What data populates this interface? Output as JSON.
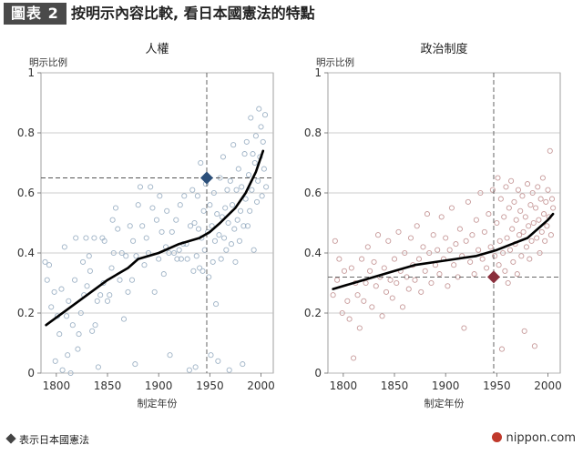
{
  "header": {
    "figure_label": "圖表 2",
    "title": "按明示內容比較, 看日本國憲法的特點"
  },
  "legend": {
    "label": "表示日本國憲法"
  },
  "source": {
    "text": "nippon.com"
  },
  "colors": {
    "left_points": "#9fb3c6",
    "right_points": "#c79a9a",
    "trend": "#000000",
    "left_marker": "#2b4f7a",
    "right_marker": "#8a2f3c",
    "grid": "#bbbbbb",
    "guide": "#555555"
  },
  "chart_data": [
    {
      "type": "scatter",
      "title": "人權",
      "ylabel": "明示比例",
      "xlabel": "制定年份",
      "xlim": [
        1785,
        2012
      ],
      "ylim": [
        0,
        1
      ],
      "xticks": [
        1800,
        1850,
        1900,
        1950,
        2000
      ],
      "yticks": [
        0,
        0.2,
        0.4,
        0.6,
        0.8,
        1
      ],
      "ytick_labels": [
        "0",
        "0.2",
        "0.4",
        "0.6",
        "0.8",
        "1"
      ],
      "grid": "horizontal",
      "japan": {
        "x": 1947,
        "y": 0.65
      },
      "trend": [
        [
          1790,
          0.16
        ],
        [
          1810,
          0.21
        ],
        [
          1830,
          0.26
        ],
        [
          1850,
          0.31
        ],
        [
          1870,
          0.35
        ],
        [
          1880,
          0.38
        ],
        [
          1900,
          0.4
        ],
        [
          1920,
          0.43
        ],
        [
          1940,
          0.45
        ],
        [
          1950,
          0.47
        ],
        [
          1960,
          0.5
        ],
        [
          1975,
          0.55
        ],
        [
          1985,
          0.6
        ],
        [
          1995,
          0.67
        ],
        [
          2002,
          0.74
        ]
      ],
      "points": [
        [
          1789,
          0.37
        ],
        [
          1791,
          0.31
        ],
        [
          1793,
          0.36
        ],
        [
          1795,
          0.22
        ],
        [
          1798,
          0.27
        ],
        [
          1799,
          0.04
        ],
        [
          1801,
          0.19
        ],
        [
          1803,
          0.13
        ],
        [
          1805,
          0.28
        ],
        [
          1806,
          0.01
        ],
        [
          1808,
          0.42
        ],
        [
          1810,
          0.19
        ],
        [
          1811,
          0.06
        ],
        [
          1812,
          0.24
        ],
        [
          1814,
          0.0
        ],
        [
          1816,
          0.16
        ],
        [
          1818,
          0.31
        ],
        [
          1819,
          0.45
        ],
        [
          1821,
          0.08
        ],
        [
          1822,
          0.13
        ],
        [
          1824,
          0.2
        ],
        [
          1826,
          0.37
        ],
        [
          1827,
          0.26
        ],
        [
          1829,
          0.45
        ],
        [
          1830,
          0.29
        ],
        [
          1832,
          0.39
        ],
        [
          1833,
          0.34
        ],
        [
          1835,
          0.14
        ],
        [
          1837,
          0.45
        ],
        [
          1838,
          0.16
        ],
        [
          1840,
          0.24
        ],
        [
          1841,
          0.02
        ],
        [
          1843,
          0.26
        ],
        [
          1845,
          0.45
        ],
        [
          1846,
          0.3
        ],
        [
          1847,
          0.44
        ],
        [
          1850,
          0.24
        ],
        [
          1852,
          0.26
        ],
        [
          1854,
          0.35
        ],
        [
          1855,
          0.51
        ],
        [
          1856,
          0.4
        ],
        [
          1858,
          0.55
        ],
        [
          1860,
          0.48
        ],
        [
          1862,
          0.31
        ],
        [
          1864,
          0.4
        ],
        [
          1866,
          0.18
        ],
        [
          1868,
          0.39
        ],
        [
          1870,
          0.27
        ],
        [
          1872,
          0.49
        ],
        [
          1874,
          0.31
        ],
        [
          1875,
          0.44
        ],
        [
          1877,
          0.03
        ],
        [
          1878,
          0.39
        ],
        [
          1880,
          0.56
        ],
        [
          1882,
          0.62
        ],
        [
          1884,
          0.49
        ],
        [
          1886,
          0.36
        ],
        [
          1888,
          0.45
        ],
        [
          1890,
          0.4
        ],
        [
          1892,
          0.62
        ],
        [
          1894,
          0.55
        ],
        [
          1896,
          0.27
        ],
        [
          1898,
          0.51
        ],
        [
          1900,
          0.38
        ],
        [
          1901,
          0.59
        ],
        [
          1903,
          0.47
        ],
        [
          1905,
          0.33
        ],
        [
          1907,
          0.42
        ],
        [
          1908,
          0.54
        ],
        [
          1910,
          0.4
        ],
        [
          1911,
          0.06
        ],
        [
          1913,
          0.47
        ],
        [
          1915,
          0.4
        ],
        [
          1917,
          0.51
        ],
        [
          1918,
          0.38
        ],
        [
          1920,
          0.41
        ],
        [
          1921,
          0.56
        ],
        [
          1922,
          0.38
        ],
        [
          1924,
          0.43
        ],
        [
          1925,
          0.59
        ],
        [
          1927,
          0.43
        ],
        [
          1928,
          0.38
        ],
        [
          1930,
          0.01
        ],
        [
          1931,
          0.49
        ],
        [
          1933,
          0.61
        ],
        [
          1934,
          0.34
        ],
        [
          1935,
          0.5
        ],
        [
          1936,
          0.02
        ],
        [
          1937,
          0.39
        ],
        [
          1938,
          0.59
        ],
        [
          1939,
          0.48
        ],
        [
          1940,
          0.35
        ],
        [
          1941,
          0.7
        ],
        [
          1942,
          0.45
        ],
        [
          1943,
          0.34
        ],
        [
          1944,
          0.54
        ],
        [
          1945,
          0.41
        ],
        [
          1946,
          0.63
        ],
        [
          1948,
          0.47
        ],
        [
          1949,
          0.32
        ],
        [
          1950,
          0.56
        ],
        [
          1951,
          0.06
        ],
        [
          1952,
          0.49
        ],
        [
          1953,
          0.37
        ],
        [
          1954,
          0.6
        ],
        [
          1955,
          0.44
        ],
        [
          1956,
          0.23
        ],
        [
          1957,
          0.53
        ],
        [
          1958,
          0.04
        ],
        [
          1959,
          0.46
        ],
        [
          1960,
          0.65
        ],
        [
          1961,
          0.38
        ],
        [
          1962,
          0.52
        ],
        [
          1963,
          0.72
        ],
        [
          1964,
          0.45
        ],
        [
          1965,
          0.55
        ],
        [
          1966,
          0.41
        ],
        [
          1967,
          0.61
        ],
        [
          1968,
          0.5
        ],
        [
          1969,
          0.01
        ],
        [
          1970,
          0.64
        ],
        [
          1971,
          0.43
        ],
        [
          1972,
          0.56
        ],
        [
          1973,
          0.76
        ],
        [
          1974,
          0.48
        ],
        [
          1975,
          0.37
        ],
        [
          1976,
          0.61
        ],
        [
          1977,
          0.51
        ],
        [
          1978,
          0.68
        ],
        [
          1979,
          0.44
        ],
        [
          1980,
          0.54
        ],
        [
          1981,
          0.62
        ],
        [
          1982,
          0.03
        ],
        [
          1983,
          0.49
        ],
        [
          1984,
          0.73
        ],
        [
          1985,
          0.58
        ],
        [
          1986,
          0.77
        ],
        [
          1987,
          0.49
        ],
        [
          1988,
          0.66
        ],
        [
          1989,
          0.54
        ],
        [
          1990,
          0.85
        ],
        [
          1991,
          0.61
        ],
        [
          1992,
          0.73
        ],
        [
          1993,
          0.41
        ],
        [
          1994,
          0.7
        ],
        [
          1995,
          0.79
        ],
        [
          1996,
          0.57
        ],
        [
          1997,
          0.64
        ],
        [
          1998,
          0.88
        ],
        [
          1999,
          0.72
        ],
        [
          2000,
          0.82
        ],
        [
          2001,
          0.59
        ],
        [
          2002,
          0.77
        ],
        [
          2003,
          0.68
        ],
        [
          2004,
          0.86
        ],
        [
          2005,
          0.62
        ]
      ]
    },
    {
      "type": "scatter",
      "title": "政治制度",
      "ylabel": "明示比例",
      "xlabel": "制定年份",
      "xlim": [
        1785,
        2012
      ],
      "ylim": [
        0,
        1
      ],
      "xticks": [
        1800,
        1850,
        1900,
        1950,
        2000
      ],
      "yticks": [
        0,
        0.2,
        0.4,
        0.6,
        0.8,
        1
      ],
      "ytick_labels": [
        "0",
        "0.2",
        "0.4",
        "0.6",
        "0.8",
        "1"
      ],
      "grid": "horizontal",
      "japan": {
        "x": 1947,
        "y": 0.32
      },
      "trend": [
        [
          1790,
          0.28
        ],
        [
          1810,
          0.3
        ],
        [
          1830,
          0.32
        ],
        [
          1850,
          0.34
        ],
        [
          1870,
          0.36
        ],
        [
          1890,
          0.37
        ],
        [
          1910,
          0.38
        ],
        [
          1930,
          0.39
        ],
        [
          1950,
          0.41
        ],
        [
          1965,
          0.43
        ],
        [
          1980,
          0.45
        ],
        [
          1990,
          0.48
        ],
        [
          2000,
          0.51
        ],
        [
          2005,
          0.53
        ]
      ],
      "points": [
        [
          1790,
          0.26
        ],
        [
          1792,
          0.44
        ],
        [
          1794,
          0.31
        ],
        [
          1796,
          0.38
        ],
        [
          1799,
          0.2
        ],
        [
          1801,
          0.34
        ],
        [
          1804,
          0.24
        ],
        [
          1806,
          0.18
        ],
        [
          1808,
          0.35
        ],
        [
          1810,
          0.05
        ],
        [
          1812,
          0.3
        ],
        [
          1814,
          0.26
        ],
        [
          1816,
          0.15
        ],
        [
          1818,
          0.38
        ],
        [
          1820,
          0.24
        ],
        [
          1822,
          0.3
        ],
        [
          1824,
          0.42
        ],
        [
          1826,
          0.34
        ],
        [
          1828,
          0.22
        ],
        [
          1830,
          0.37
        ],
        [
          1832,
          0.29
        ],
        [
          1834,
          0.46
        ],
        [
          1836,
          0.32
        ],
        [
          1838,
          0.19
        ],
        [
          1840,
          0.35
        ],
        [
          1842,
          0.27
        ],
        [
          1844,
          0.44
        ],
        [
          1846,
          0.31
        ],
        [
          1848,
          0.25
        ],
        [
          1850,
          0.38
        ],
        [
          1852,
          0.3
        ],
        [
          1854,
          0.47
        ],
        [
          1856,
          0.34
        ],
        [
          1858,
          0.22
        ],
        [
          1860,
          0.4
        ],
        [
          1862,
          0.32
        ],
        [
          1864,
          0.28
        ],
        [
          1866,
          0.45
        ],
        [
          1868,
          0.36
        ],
        [
          1870,
          0.31
        ],
        [
          1872,
          0.49
        ],
        [
          1874,
          0.38
        ],
        [
          1876,
          0.27
        ],
        [
          1878,
          0.42
        ],
        [
          1880,
          0.34
        ],
        [
          1882,
          0.53
        ],
        [
          1884,
          0.4
        ],
        [
          1886,
          0.3
        ],
        [
          1888,
          0.46
        ],
        [
          1890,
          0.36
        ],
        [
          1892,
          0.41
        ],
        [
          1894,
          0.33
        ],
        [
          1896,
          0.52
        ],
        [
          1898,
          0.38
        ],
        [
          1900,
          0.45
        ],
        [
          1902,
          0.29
        ],
        [
          1904,
          0.41
        ],
        [
          1906,
          0.55
        ],
        [
          1908,
          0.36
        ],
        [
          1910,
          0.43
        ],
        [
          1912,
          0.32
        ],
        [
          1914,
          0.48
        ],
        [
          1916,
          0.39
        ],
        [
          1918,
          0.15
        ],
        [
          1920,
          0.44
        ],
        [
          1922,
          0.57
        ],
        [
          1924,
          0.37
        ],
        [
          1926,
          0.46
        ],
        [
          1928,
          0.33
        ],
        [
          1930,
          0.51
        ],
        [
          1932,
          0.41
        ],
        [
          1934,
          0.6
        ],
        [
          1936,
          0.38
        ],
        [
          1938,
          0.47
        ],
        [
          1940,
          0.35
        ],
        [
          1942,
          0.53
        ],
        [
          1944,
          0.42
        ],
        [
          1946,
          0.61
        ],
        [
          1948,
          0.39
        ],
        [
          1950,
          0.5
        ],
        [
          1951,
          0.65
        ],
        [
          1952,
          0.36
        ],
        [
          1953,
          0.44
        ],
        [
          1954,
          0.58
        ],
        [
          1955,
          0.08
        ],
        [
          1956,
          0.4
        ],
        [
          1957,
          0.52
        ],
        [
          1958,
          0.34
        ],
        [
          1959,
          0.62
        ],
        [
          1960,
          0.45
        ],
        [
          1961,
          0.3
        ],
        [
          1962,
          0.55
        ],
        [
          1963,
          0.41
        ],
        [
          1964,
          0.64
        ],
        [
          1965,
          0.48
        ],
        [
          1966,
          0.37
        ],
        [
          1967,
          0.57
        ],
        [
          1968,
          0.43
        ],
        [
          1969,
          0.51
        ],
        [
          1970,
          0.33
        ],
        [
          1971,
          0.61
        ],
        [
          1972,
          0.46
        ],
        [
          1973,
          0.54
        ],
        [
          1974,
          0.39
        ],
        [
          1975,
          0.59
        ],
        [
          1976,
          0.47
        ],
        [
          1977,
          0.14
        ],
        [
          1978,
          0.52
        ],
        [
          1979,
          0.42
        ],
        [
          1980,
          0.63
        ],
        [
          1981,
          0.49
        ],
        [
          1982,
          0.38
        ],
        [
          1983,
          0.56
        ],
        [
          1984,
          0.44
        ],
        [
          1985,
          0.6
        ],
        [
          1986,
          0.5
        ],
        [
          1987,
          0.09
        ],
        [
          1988,
          0.55
        ],
        [
          1989,
          0.45
        ],
        [
          1990,
          0.62
        ],
        [
          1991,
          0.51
        ],
        [
          1992,
          0.4
        ],
        [
          1993,
          0.58
        ],
        [
          1994,
          0.47
        ],
        [
          1995,
          0.65
        ],
        [
          1996,
          0.53
        ],
        [
          1997,
          0.44
        ],
        [
          1998,
          0.57
        ],
        [
          1999,
          0.49
        ],
        [
          2000,
          0.61
        ],
        [
          2001,
          0.52
        ],
        [
          2002,
          0.74
        ],
        [
          2003,
          0.46
        ],
        [
          2004,
          0.58
        ],
        [
          2005,
          0.55
        ]
      ]
    }
  ]
}
